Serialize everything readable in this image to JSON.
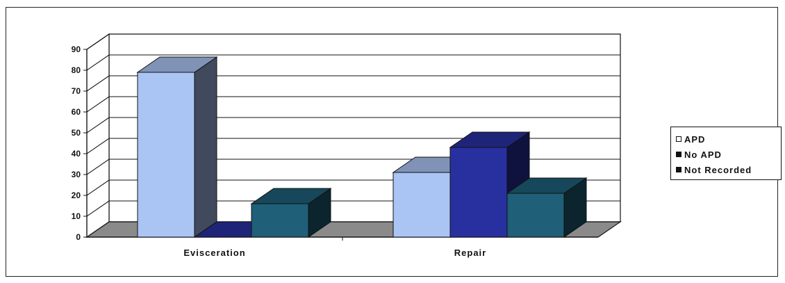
{
  "chart_data": {
    "type": "bar",
    "title": "",
    "xlabel": "",
    "ylabel": "",
    "categories": [
      "Evisceration",
      "Repair"
    ],
    "series": [
      {
        "name": "APD",
        "values": [
          79,
          31
        ],
        "color": "#aac4f4"
      },
      {
        "name": "No APD",
        "values": [
          0,
          43
        ],
        "color": "#2830a0"
      },
      {
        "name": "Not Recorded",
        "values": [
          16,
          21
        ],
        "color": "#1f5f78"
      }
    ],
    "ylim": [
      0,
      90
    ],
    "yticks": [
      0,
      10,
      20,
      30,
      40,
      50,
      60,
      70,
      80,
      90
    ],
    "grid": true,
    "style_3d": true,
    "legend_position": "right"
  }
}
